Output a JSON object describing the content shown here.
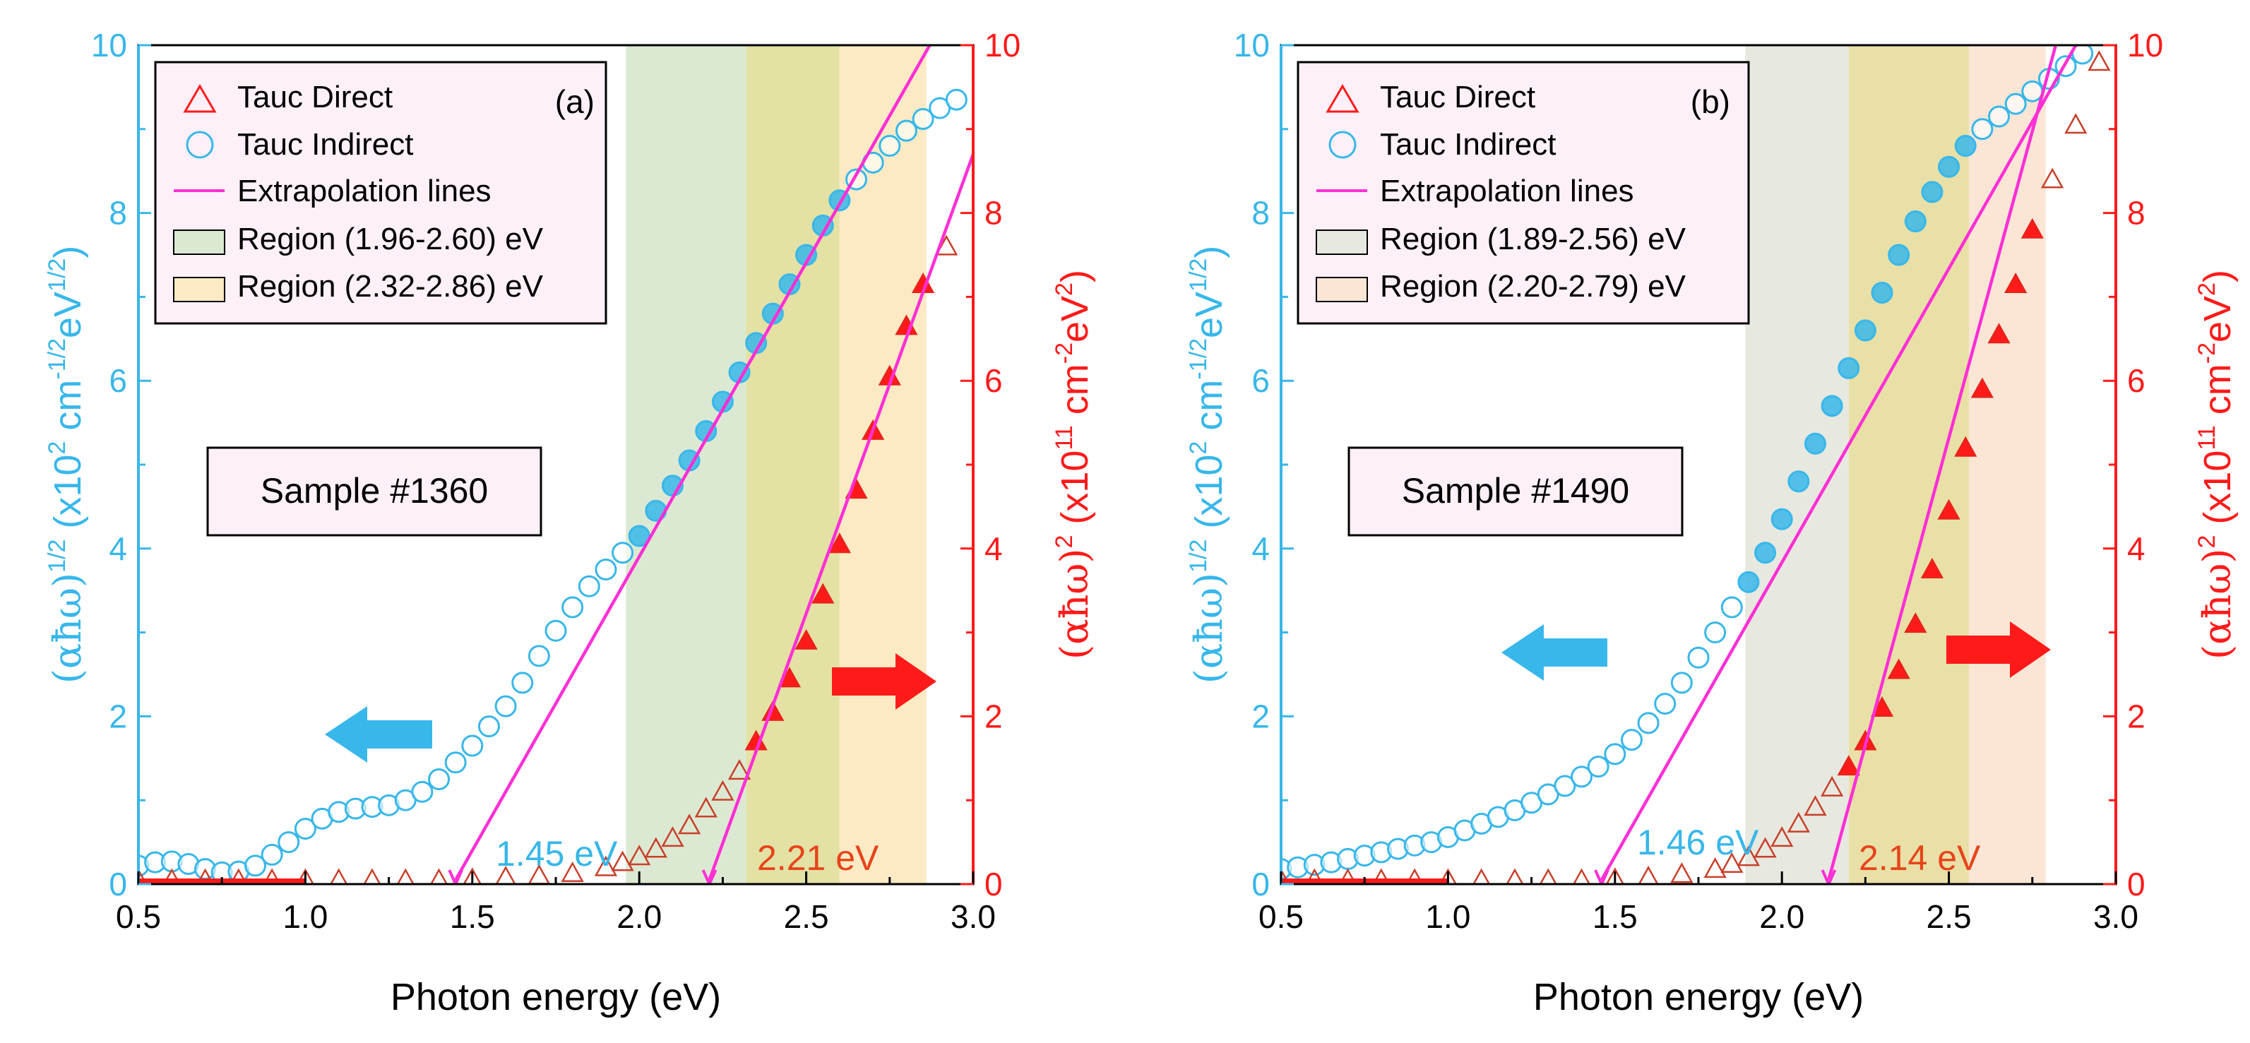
{
  "shared": {
    "xlabel": "Photon energy (eV)",
    "ylabel_left": "(αħω)^1/2 (x10^2 cm^-1/2 eV^1/2)",
    "ylabel_right": "(αħω)^2 (x10^11 cm^-2 eV^2)",
    "legend_direct": "Tauc Direct",
    "legend_indirect": "Tauc Indirect",
    "legend_lines": "Extrapolation lines",
    "colors": {
      "left_axis": "#38b7ea",
      "right_axis": "#ff1a1a",
      "extrap": "#ff2fd6",
      "region1": "#dce9d2",
      "region2": "#fbeac4",
      "overlap": "#e3e1a4"
    }
  },
  "chart_data": [
    {
      "type": "scatter",
      "panel": "(a)",
      "sample": "Sample #1360",
      "region1_label": "Region (1.96-2.60) eV",
      "region2_label": "Region (2.32-2.86) eV",
      "region1": [
        1.96,
        2.6
      ],
      "region2": [
        2.32,
        2.86
      ],
      "indirect_gap_label": "1.45 eV",
      "direct_gap_label": "2.21 eV",
      "xlim": [
        0.5,
        3.0
      ],
      "ylim_left": [
        0,
        10
      ],
      "ylim_right": [
        0,
        10
      ],
      "xticks": [
        "0.5",
        "1.0",
        "1.5",
        "2.0",
        "2.5",
        "3.0"
      ],
      "yticks": [
        "0",
        "2",
        "4",
        "6",
        "8",
        "10"
      ],
      "indirect": {
        "x": [
          0.5,
          0.55,
          0.6,
          0.65,
          0.7,
          0.75,
          0.8,
          0.85,
          0.9,
          0.95,
          1.0,
          1.05,
          1.1,
          1.15,
          1.2,
          1.25,
          1.3,
          1.35,
          1.4,
          1.45,
          1.5,
          1.55,
          1.6,
          1.65,
          1.7,
          1.75,
          1.8,
          1.85,
          1.9,
          1.95,
          2.0,
          2.05,
          2.1,
          2.15,
          2.2,
          2.25,
          2.3,
          2.35,
          2.4,
          2.45,
          2.5,
          2.55,
          2.6,
          2.65,
          2.7,
          2.75,
          2.8,
          2.85,
          2.9,
          2.95
        ],
        "y": [
          0.22,
          0.26,
          0.27,
          0.24,
          0.18,
          0.14,
          0.15,
          0.22,
          0.35,
          0.5,
          0.66,
          0.78,
          0.86,
          0.9,
          0.92,
          0.94,
          1.0,
          1.1,
          1.25,
          1.45,
          1.65,
          1.88,
          2.12,
          2.4,
          2.72,
          3.02,
          3.3,
          3.55,
          3.75,
          3.95,
          4.15,
          4.45,
          4.75,
          5.05,
          5.4,
          5.75,
          6.1,
          6.45,
          6.8,
          7.15,
          7.5,
          7.85,
          8.15,
          8.4,
          8.6,
          8.8,
          8.98,
          9.12,
          9.25,
          9.35
        ]
      },
      "direct": {
        "x": [
          0.5,
          0.6,
          0.7,
          0.8,
          0.9,
          1.0,
          1.1,
          1.2,
          1.3,
          1.4,
          1.5,
          1.6,
          1.7,
          1.8,
          1.9,
          1.95,
          2.0,
          2.05,
          2.1,
          2.15,
          2.2,
          2.25,
          2.3,
          2.35,
          2.4,
          2.45,
          2.5,
          2.55,
          2.6,
          2.65,
          2.7,
          2.75,
          2.8,
          2.85,
          2.92
        ],
        "y": [
          0.05,
          0.05,
          0.05,
          0.05,
          0.05,
          0.05,
          0.05,
          0.05,
          0.05,
          0.05,
          0.06,
          0.08,
          0.1,
          0.13,
          0.2,
          0.26,
          0.33,
          0.42,
          0.55,
          0.7,
          0.9,
          1.1,
          1.35,
          1.7,
          2.05,
          2.45,
          2.9,
          3.45,
          4.05,
          4.7,
          5.4,
          6.05,
          6.65,
          7.15,
          7.6
        ]
      },
      "extrap_indirect": {
        "x": [
          1.45,
          2.87
        ],
        "y": [
          0,
          10
        ]
      },
      "extrap_direct": {
        "x": [
          2.21,
          3.0
        ],
        "y": [
          0,
          8.7
        ]
      }
    },
    {
      "type": "scatter",
      "panel": "(b)",
      "sample": "Sample #1490",
      "region1_label": "Region (1.89-2.56) eV",
      "region2_label": "Region (2.20-2.79) eV",
      "region1": [
        1.89,
        2.56
      ],
      "region2": [
        2.2,
        2.79
      ],
      "indirect_gap_label": "1.46 eV",
      "direct_gap_label": "2.14 eV",
      "xlim": [
        0.5,
        3.0
      ],
      "ylim_left": [
        0,
        10
      ],
      "ylim_right": [
        0,
        10
      ],
      "xticks": [
        "0.5",
        "1.0",
        "1.5",
        "2.0",
        "2.5",
        "3.0"
      ],
      "yticks": [
        "0",
        "2",
        "4",
        "6",
        "8",
        "10"
      ],
      "indirect": {
        "x": [
          0.5,
          0.55,
          0.6,
          0.65,
          0.7,
          0.75,
          0.8,
          0.85,
          0.9,
          0.95,
          1.0,
          1.05,
          1.1,
          1.15,
          1.2,
          1.25,
          1.3,
          1.35,
          1.4,
          1.45,
          1.5,
          1.55,
          1.6,
          1.65,
          1.7,
          1.75,
          1.8,
          1.85,
          1.9,
          1.95,
          2.0,
          2.05,
          2.1,
          2.15,
          2.2,
          2.25,
          2.3,
          2.35,
          2.4,
          2.45,
          2.5,
          2.55,
          2.6,
          2.65,
          2.7,
          2.75,
          2.8,
          2.85,
          2.9
        ],
        "y": [
          0.18,
          0.2,
          0.23,
          0.26,
          0.3,
          0.34,
          0.38,
          0.42,
          0.46,
          0.5,
          0.56,
          0.64,
          0.72,
          0.8,
          0.88,
          0.97,
          1.07,
          1.17,
          1.28,
          1.4,
          1.55,
          1.72,
          1.92,
          2.15,
          2.4,
          2.7,
          3.0,
          3.3,
          3.6,
          3.95,
          4.35,
          4.8,
          5.25,
          5.7,
          6.15,
          6.6,
          7.05,
          7.5,
          7.9,
          8.25,
          8.55,
          8.8,
          9.0,
          9.15,
          9.3,
          9.45,
          9.6,
          9.75,
          9.9
        ]
      },
      "direct": {
        "x": [
          0.5,
          0.6,
          0.7,
          0.8,
          0.9,
          1.0,
          1.1,
          1.2,
          1.3,
          1.4,
          1.5,
          1.6,
          1.7,
          1.8,
          1.85,
          1.9,
          1.95,
          2.0,
          2.05,
          2.1,
          2.15,
          2.2,
          2.25,
          2.3,
          2.35,
          2.4,
          2.45,
          2.5,
          2.55,
          2.6,
          2.65,
          2.7,
          2.75,
          2.81,
          2.88,
          2.95
        ],
        "y": [
          0.05,
          0.05,
          0.05,
          0.05,
          0.05,
          0.05,
          0.05,
          0.05,
          0.05,
          0.05,
          0.06,
          0.08,
          0.12,
          0.18,
          0.24,
          0.32,
          0.42,
          0.55,
          0.72,
          0.92,
          1.15,
          1.4,
          1.7,
          2.1,
          2.55,
          3.1,
          3.75,
          4.45,
          5.2,
          5.9,
          6.55,
          7.15,
          7.8,
          8.4,
          9.05,
          9.8
        ]
      },
      "extrap_indirect": {
        "x": [
          1.46,
          2.88
        ],
        "y": [
          0,
          10
        ]
      },
      "extrap_direct": {
        "x": [
          2.14,
          2.82
        ],
        "y": [
          0,
          10
        ]
      }
    }
  ]
}
